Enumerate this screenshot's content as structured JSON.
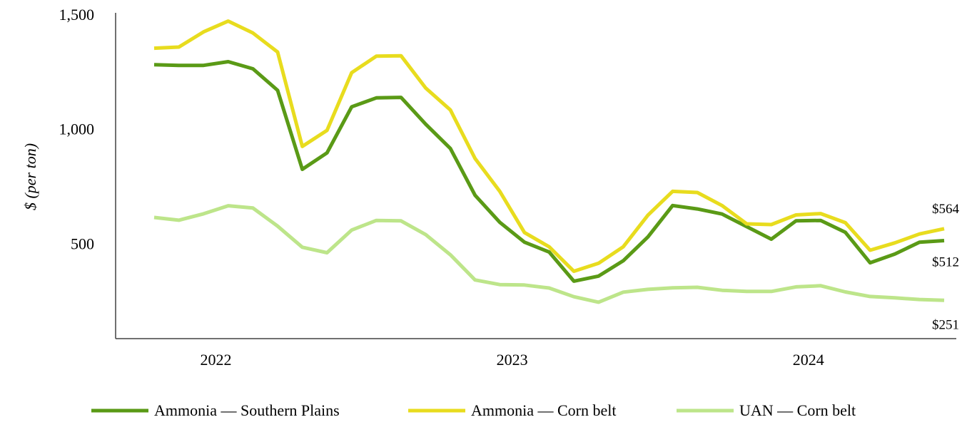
{
  "chart_data": {
    "type": "line",
    "title": "",
    "xlabel": "",
    "ylabel": "$ (per ton)",
    "ylim": [
      0,
      1500
    ],
    "yticks": [
      500,
      1000,
      1500
    ],
    "ytick_labels": [
      "500",
      "1,000",
      "1,500"
    ],
    "x_tick_labels": [
      "2022",
      "2023",
      "2024"
    ],
    "x_tick_index": [
      2.5,
      14.5,
      26.5
    ],
    "grid": false,
    "legend_position": "bottom",
    "series": [
      {
        "name": "Ammonia — Southern Plains",
        "color": "#5a9a16",
        "end_label": "$512",
        "values": [
          1280,
          1277,
          1277,
          1293,
          1262,
          1168,
          823,
          895,
          1096,
          1135,
          1137,
          1020,
          914,
          710,
          592,
          505,
          462,
          335,
          357,
          424,
          528,
          665,
          650,
          628,
          573,
          518,
          598,
          600,
          548,
          415,
          453,
          505,
          512
        ]
      },
      {
        "name": "Ammonia — Corn belt",
        "color": "#e8dc1e",
        "end_label": "$564",
        "values": [
          1352,
          1357,
          1423,
          1470,
          1418,
          1335,
          923,
          993,
          1245,
          1317,
          1319,
          1178,
          1082,
          870,
          727,
          547,
          485,
          378,
          413,
          485,
          623,
          727,
          722,
          665,
          585,
          582,
          624,
          630,
          590,
          470,
          502,
          541,
          564
        ]
      },
      {
        "name": "UAN — Corn belt",
        "color": "#bde58a",
        "end_label": "$251",
        "values": [
          613,
          601,
          629,
          664,
          654,
          575,
          483,
          459,
          558,
          600,
          598,
          538,
          450,
          340,
          320,
          318,
          305,
          267,
          243,
          287,
          299,
          306,
          308,
          295,
          290,
          290,
          310,
          315,
          288,
          268,
          262,
          255,
          251
        ]
      }
    ]
  }
}
